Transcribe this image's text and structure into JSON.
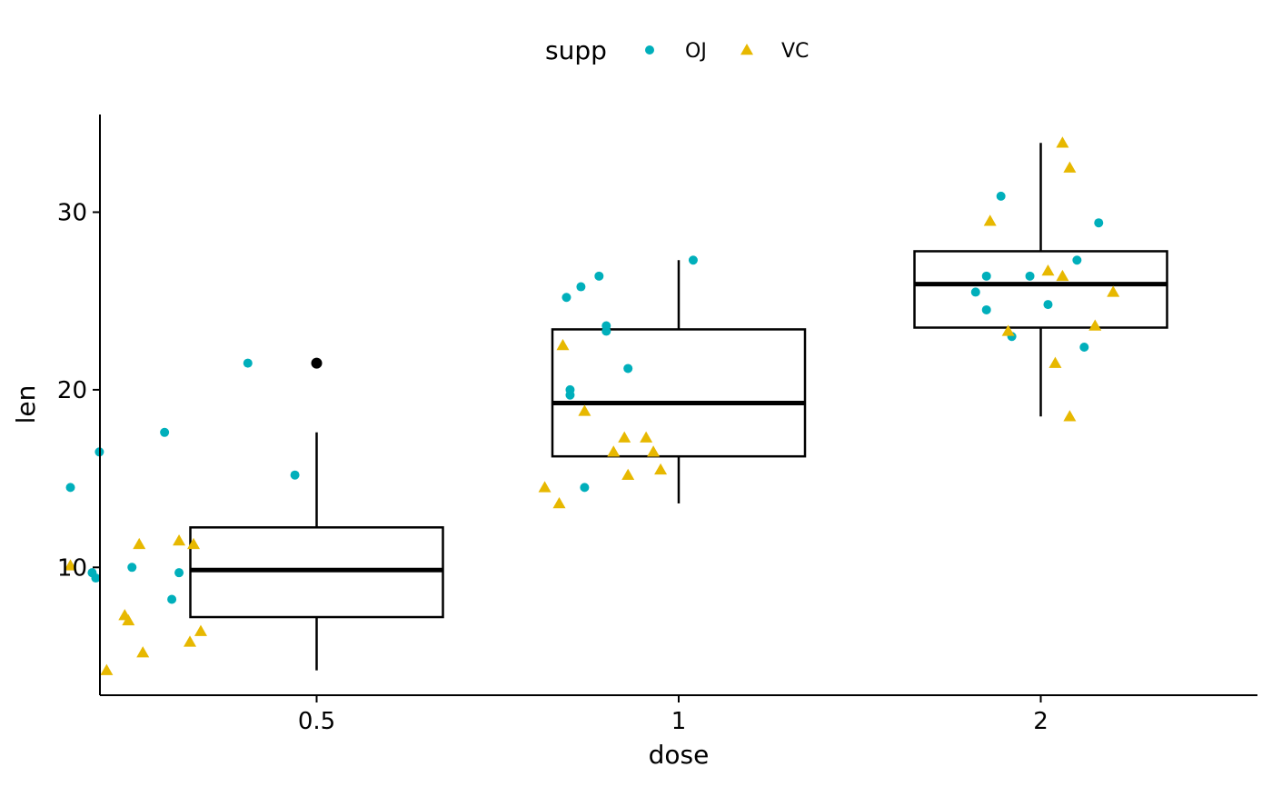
{
  "chart_data": {
    "type": "box",
    "xlabel": "dose",
    "ylabel": "len",
    "categories": [
      "0.5",
      "1",
      "2"
    ],
    "ylim": [
      2.8,
      35.5
    ],
    "yticks": [
      10,
      20,
      30
    ],
    "grid": false,
    "legend": {
      "title": "supp",
      "position": "top",
      "entries": [
        {
          "label": "OJ",
          "shape": "circle",
          "color": "#00AFBB"
        },
        {
          "label": "VC",
          "shape": "triangle",
          "color": "#E7B800"
        }
      ]
    },
    "boxes": [
      {
        "category": "0.5",
        "whisker_low": 4.2,
        "q1": 7.2,
        "median": 9.85,
        "q3": 12.25,
        "whisker_high": 17.6,
        "outliers": [
          21.5
        ]
      },
      {
        "category": "1",
        "whisker_low": 13.6,
        "q1": 16.25,
        "median": 19.25,
        "q3": 23.4,
        "whisker_high": 27.3,
        "outliers": []
      },
      {
        "category": "2",
        "whisker_low": 18.5,
        "q1": 23.5,
        "median": 25.95,
        "q3": 27.8,
        "whisker_high": 33.9,
        "outliers": []
      }
    ],
    "series": [
      {
        "name": "OJ",
        "points": [
          {
            "x": 0.32,
            "y": 14.5
          },
          {
            "x": 0.4,
            "y": 16.5
          },
          {
            "x": 0.58,
            "y": 17.6
          },
          {
            "x": 0.81,
            "y": 21.5
          },
          {
            "x": 0.94,
            "y": 15.2
          },
          {
            "x": 0.49,
            "y": 10.0
          },
          {
            "x": 0.62,
            "y": 9.7
          },
          {
            "x": 0.39,
            "y": 9.4
          },
          {
            "x": 0.38,
            "y": 9.7
          },
          {
            "x": 0.6,
            "y": 8.2
          },
          {
            "x": 1.69,
            "y": 25.2
          },
          {
            "x": 1.73,
            "y": 25.8
          },
          {
            "x": 1.78,
            "y": 26.4
          },
          {
            "x": 2.04,
            "y": 27.3
          },
          {
            "x": 1.8,
            "y": 23.6
          },
          {
            "x": 1.8,
            "y": 23.3
          },
          {
            "x": 1.86,
            "y": 21.2
          },
          {
            "x": 1.7,
            "y": 20.0
          },
          {
            "x": 1.7,
            "y": 19.7
          },
          {
            "x": 1.74,
            "y": 14.5
          },
          {
            "x": 2.89,
            "y": 30.9
          },
          {
            "x": 3.16,
            "y": 29.4
          },
          {
            "x": 3.1,
            "y": 27.3
          },
          {
            "x": 2.85,
            "y": 26.4
          },
          {
            "x": 2.97,
            "y": 26.4
          },
          {
            "x": 2.82,
            "y": 25.5
          },
          {
            "x": 3.02,
            "y": 24.8
          },
          {
            "x": 2.85,
            "y": 24.5
          },
          {
            "x": 2.92,
            "y": 23.0
          },
          {
            "x": 3.12,
            "y": 22.4
          }
        ]
      },
      {
        "name": "VC",
        "points": [
          {
            "x": 0.32,
            "y": 10.1
          },
          {
            "x": 0.51,
            "y": 11.3
          },
          {
            "x": 0.62,
            "y": 11.5
          },
          {
            "x": 0.66,
            "y": 11.3
          },
          {
            "x": 0.47,
            "y": 7.3
          },
          {
            "x": 0.48,
            "y": 7.0
          },
          {
            "x": 0.68,
            "y": 6.4
          },
          {
            "x": 0.65,
            "y": 5.8
          },
          {
            "x": 0.52,
            "y": 5.2
          },
          {
            "x": 0.42,
            "y": 4.2
          },
          {
            "x": 1.68,
            "y": 22.5
          },
          {
            "x": 1.74,
            "y": 18.8
          },
          {
            "x": 1.85,
            "y": 17.3
          },
          {
            "x": 1.91,
            "y": 17.3
          },
          {
            "x": 1.82,
            "y": 16.5
          },
          {
            "x": 1.93,
            "y": 16.5
          },
          {
            "x": 1.95,
            "y": 15.5
          },
          {
            "x": 1.86,
            "y": 15.2
          },
          {
            "x": 1.63,
            "y": 14.5
          },
          {
            "x": 1.67,
            "y": 13.6
          },
          {
            "x": 3.06,
            "y": 33.9
          },
          {
            "x": 3.08,
            "y": 32.5
          },
          {
            "x": 2.86,
            "y": 29.5
          },
          {
            "x": 3.02,
            "y": 26.7
          },
          {
            "x": 3.06,
            "y": 26.4
          },
          {
            "x": 3.2,
            "y": 25.5
          },
          {
            "x": 3.15,
            "y": 23.6
          },
          {
            "x": 2.91,
            "y": 23.3
          },
          {
            "x": 3.04,
            "y": 21.5
          },
          {
            "x": 3.08,
            "y": 18.5
          }
        ]
      }
    ]
  }
}
